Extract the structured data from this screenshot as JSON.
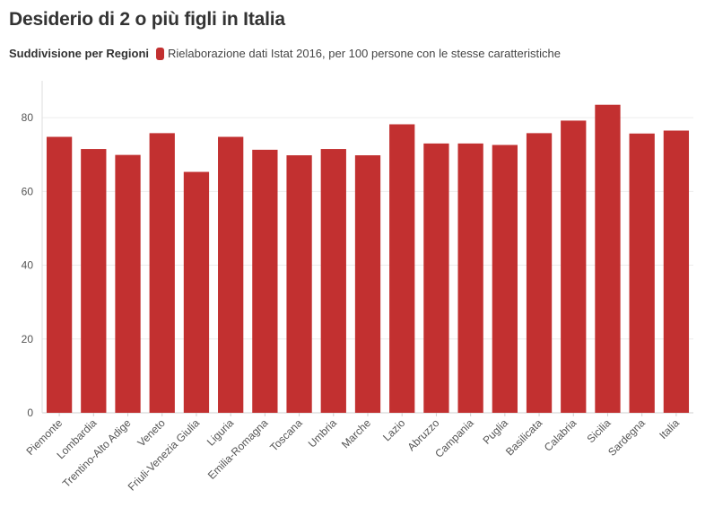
{
  "chart_data": {
    "type": "bar",
    "title": "Desiderio di 2 o più figli in Italia",
    "legend_title": "Suddivisione per Regioni",
    "series": [
      {
        "name": "Rielaborazione dati Istat 2016, per 100 persone con le stesse caratteristiche",
        "color": "#c23030",
        "values": [
          74.8,
          71.5,
          69.9,
          75.8,
          65.3,
          74.8,
          71.3,
          69.8,
          71.5,
          69.8,
          78.2,
          73.0,
          73.0,
          72.6,
          75.8,
          79.2,
          83.5,
          75.7,
          76.5
        ]
      }
    ],
    "categories": [
      "Piemonte",
      "Lombardia",
      "Trentino-Alto Adige",
      "Veneto",
      "Friuli-Venezia Giulia",
      "Liguria",
      "Emilia-Romagna",
      "Toscana",
      "Umbria",
      "Marche",
      "Lazio",
      "Abruzzo",
      "Campania",
      "Puglia",
      "Basilicata",
      "Calabria",
      "Sicilia",
      "Sardegna",
      "Italia"
    ],
    "yticks": [
      "0",
      "20",
      "40",
      "60",
      "80"
    ],
    "ylim": [
      0,
      90
    ],
    "xlabel": "",
    "ylabel": "",
    "grid": true,
    "legend_position": "top-left"
  }
}
